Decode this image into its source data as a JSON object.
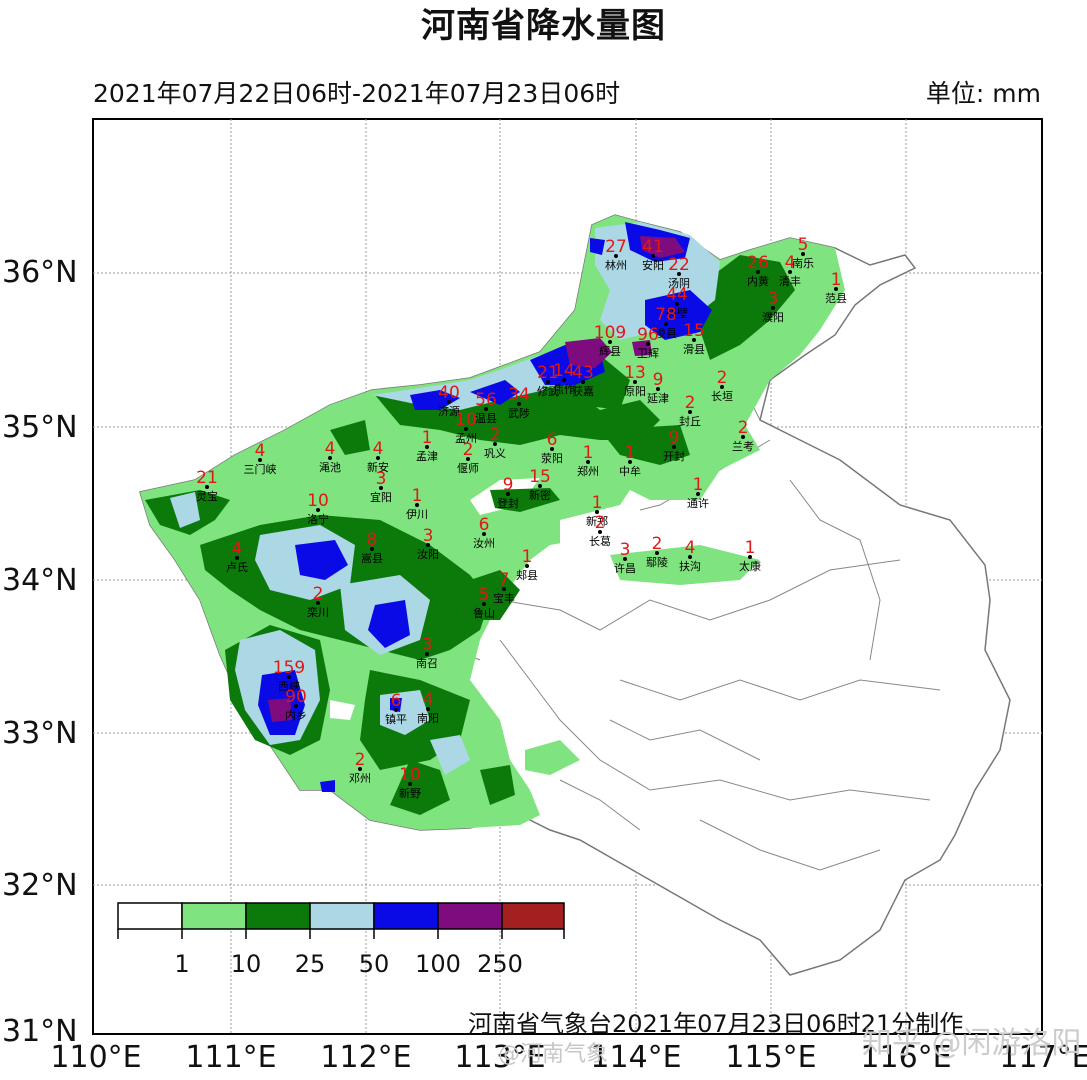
{
  "title": "河南省降水量图",
  "period": "2021年07月22日06时-2021年07月23日06时",
  "unit": "单位: mm",
  "credit": "河南省气象台2021年07月23日06时21分制作",
  "watermarks": {
    "weibo": "@河南气象",
    "zhihu": "知乎 @闲游洛阳"
  },
  "lat_labels": [
    "36°N",
    "35°N",
    "34°N",
    "33°N",
    "32°N",
    "31°N"
  ],
  "lon_labels": [
    "110°E",
    "111°E",
    "112°E",
    "113°E",
    "114°E",
    "115°E",
    "116°E",
    "117°E"
  ],
  "legend": {
    "labels": [
      "1",
      "10",
      "25",
      "50",
      "100",
      "250"
    ],
    "colors": [
      "#ffffff",
      "#7fe47f",
      "#0b7a0b",
      "#acd8e6",
      "#0a0ae6",
      "#7e0c7e",
      "#a42020"
    ]
  },
  "colors": {
    "light_green": "#7fe47f",
    "dark_green": "#0b7a0b",
    "light_blue": "#acd8e6",
    "blue": "#0a0ae6",
    "purple": "#7e0c7e",
    "value_text": "#e01818"
  },
  "stations": [
    {
      "name": "林州",
      "value": "27"
    },
    {
      "name": "安阳",
      "value": "41"
    },
    {
      "name": "汤阴",
      "value": "22"
    },
    {
      "name": "内黄",
      "value": "26"
    },
    {
      "name": "清丰",
      "value": "4"
    },
    {
      "name": "南乐",
      "value": "5"
    },
    {
      "name": "范县",
      "value": "1"
    },
    {
      "name": "濮阳",
      "value": "3"
    },
    {
      "name": "鹤壁",
      "value": "44"
    },
    {
      "name": "浚县",
      "value": "78"
    },
    {
      "name": "滑县",
      "value": "15"
    },
    {
      "name": "辉县",
      "value": "109"
    },
    {
      "name": "卫辉",
      "value": "96"
    },
    {
      "name": "获嘉",
      "value": "43"
    },
    {
      "name": "修武",
      "value": "21"
    },
    {
      "name": "焦作",
      "value": "14"
    },
    {
      "name": "济源",
      "value": "40"
    },
    {
      "name": "孟州",
      "value": "10"
    },
    {
      "name": "温县",
      "value": "56"
    },
    {
      "name": "武陟",
      "value": "34"
    },
    {
      "name": "原阳",
      "value": "13"
    },
    {
      "name": "延津",
      "value": "9"
    },
    {
      "name": "长垣",
      "value": "2"
    },
    {
      "name": "封丘",
      "value": "2"
    },
    {
      "name": "兰考",
      "value": "2"
    },
    {
      "name": "开封",
      "value": "9"
    },
    {
      "name": "中牟",
      "value": "1"
    },
    {
      "name": "郑州",
      "value": "1"
    },
    {
      "name": "荥阳",
      "value": "6"
    },
    {
      "name": "巩义",
      "value": "2"
    },
    {
      "name": "偃师",
      "value": "2"
    },
    {
      "name": "孟津",
      "value": "1"
    },
    {
      "name": "新安",
      "value": "4"
    },
    {
      "name": "渑池",
      "value": "4"
    },
    {
      "name": "三门峡",
      "value": "4"
    },
    {
      "name": "灵宝",
      "value": "21"
    },
    {
      "name": "卢氏",
      "value": "4"
    },
    {
      "name": "洛宁",
      "value": "10"
    },
    {
      "name": "宜阳",
      "value": "3"
    },
    {
      "name": "伊川",
      "value": "1"
    },
    {
      "name": "汝阳",
      "value": "3"
    },
    {
      "name": "嵩县",
      "value": "8"
    },
    {
      "name": "栾川",
      "value": "2"
    },
    {
      "name": "西峡",
      "value": "159"
    },
    {
      "name": "内乡",
      "value": "90"
    },
    {
      "name": "南召",
      "value": "3"
    },
    {
      "name": "镇平",
      "value": "6"
    },
    {
      "name": "南阳",
      "value": "4"
    },
    {
      "name": "邓州",
      "value": "2"
    },
    {
      "name": "新野",
      "value": "10"
    },
    {
      "name": "鲁山",
      "value": "5"
    },
    {
      "name": "宝丰",
      "value": "7"
    },
    {
      "name": "郏县",
      "value": "1"
    },
    {
      "name": "汝州",
      "value": "6"
    },
    {
      "name": "登封",
      "value": "9"
    },
    {
      "name": "新密",
      "value": "15"
    },
    {
      "name": "新郑",
      "value": "1"
    },
    {
      "name": "长葛",
      "value": "2"
    },
    {
      "name": "许昌",
      "value": "3"
    },
    {
      "name": "鄢陵",
      "value": "2"
    },
    {
      "name": "扶沟",
      "value": "4"
    },
    {
      "name": "太康",
      "value": "1"
    },
    {
      "name": "通许",
      "value": "1"
    }
  ]
}
